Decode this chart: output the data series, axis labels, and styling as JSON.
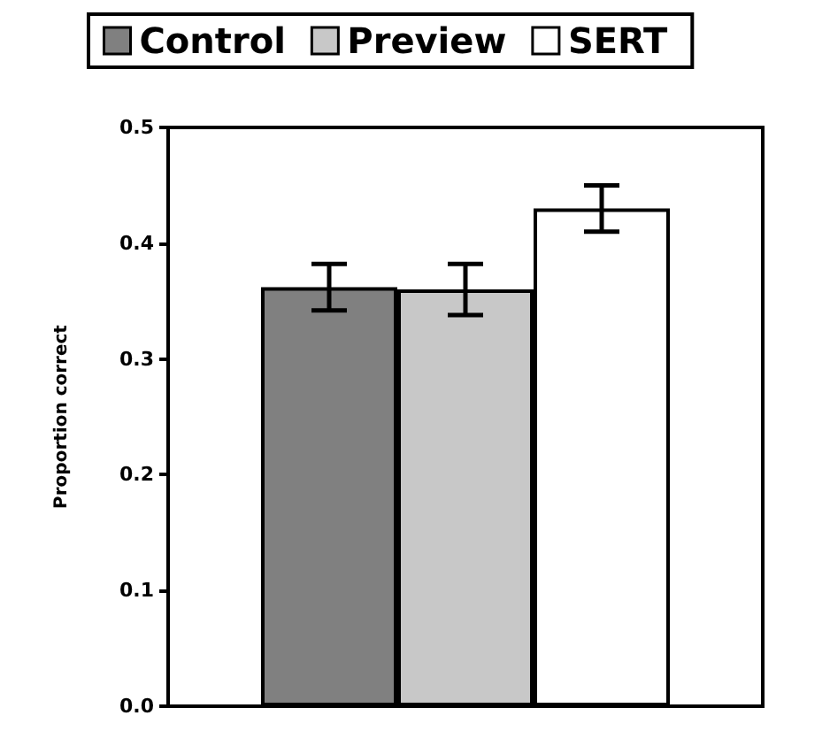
{
  "chart_data": {
    "type": "bar",
    "ylabel": "Proportion correct",
    "categories": [
      null
    ],
    "series": [
      {
        "name": "Control",
        "color": "#808080",
        "values": [
          0.362
        ],
        "errors": [
          0.02
        ]
      },
      {
        "name": "Preview",
        "color": "#c8c8c8",
        "values": [
          0.36
        ],
        "errors": [
          0.022
        ]
      },
      {
        "name": "SERT",
        "color": "#ffffff",
        "values": [
          0.43
        ],
        "errors": [
          0.02
        ]
      }
    ],
    "ylim": [
      0,
      0.5
    ],
    "yticks": [
      {
        "value": 0,
        "label": "0.0"
      },
      {
        "value": 0.1,
        "label": "0.1"
      },
      {
        "value": 0.2,
        "label": "0.2"
      },
      {
        "value": 0.3,
        "label": "0.3"
      },
      {
        "value": 0.4,
        "label": "0.4"
      },
      {
        "value": 0.5,
        "label": "0.5"
      }
    ],
    "grid": false,
    "legend": "top"
  }
}
